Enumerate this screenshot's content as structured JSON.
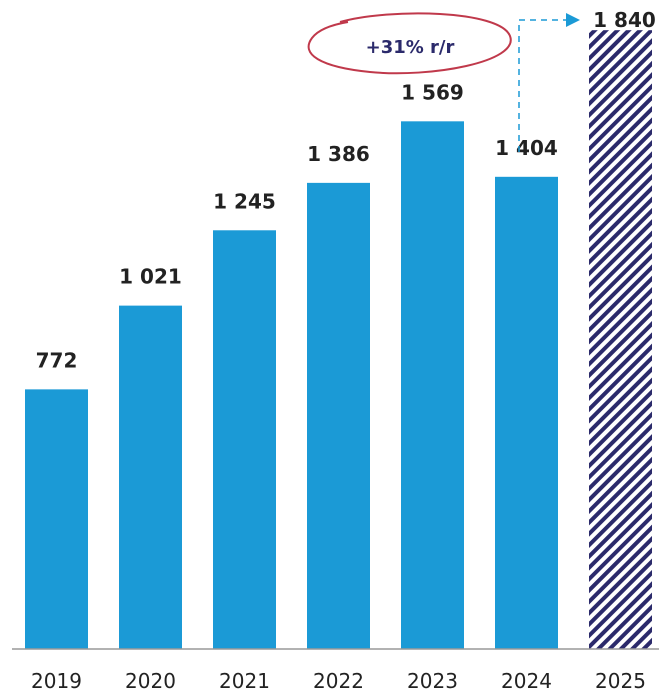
{
  "chart_data": {
    "type": "bar",
    "categories": [
      "2019",
      "2020",
      "2021",
      "2022",
      "2023",
      "2024",
      "2025"
    ],
    "values": [
      772,
      1021,
      1245,
      1386,
      1569,
      1404,
      1840
    ],
    "value_labels": [
      "772",
      "1 021",
      "1 245",
      "1 386",
      "1 569",
      "1 404",
      "1 840"
    ],
    "forecast_category": "2025",
    "title": "",
    "xlabel": "",
    "ylabel": "",
    "ylim": [
      0,
      1900
    ],
    "grid": false,
    "annotation": "+31% r/r",
    "colors": {
      "bar": "#1b9ad6",
      "forecast_stripe": "#2b2a6b",
      "callout_ellipse": "#c0394b",
      "arrow": "#1b9ad6",
      "axis": "#999999"
    }
  }
}
